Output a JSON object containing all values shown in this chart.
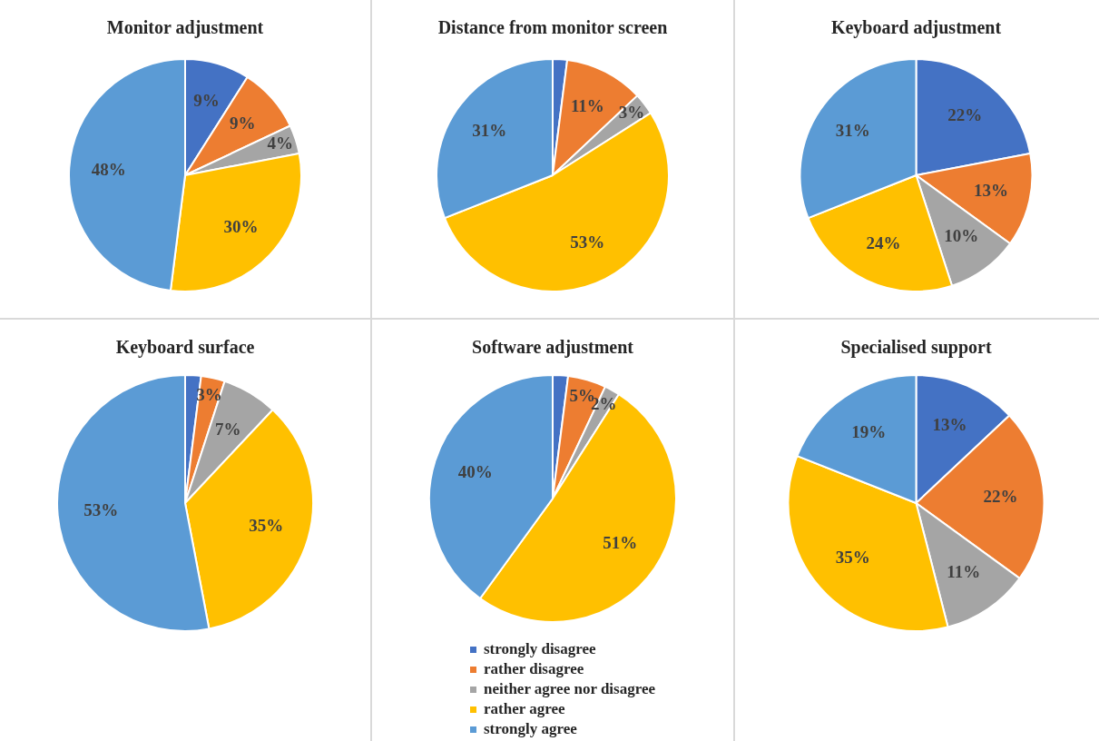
{
  "chart_data": [
    {
      "type": "pie",
      "title": "Monitor adjustment",
      "categories": [
        null,
        null,
        null,
        null,
        null
      ],
      "values": [
        9,
        9,
        4,
        30,
        48
      ],
      "colors": [
        "#4472c4",
        "#ed7d31",
        "#a5a5a5",
        "#ffc000",
        "#5b9bd5"
      ],
      "value_labels": [
        "9%",
        "9%",
        "4%",
        "30%",
        "48%"
      ],
      "legend": false
    },
    {
      "type": "pie",
      "title": "Distance from monitor screen",
      "categories": [
        null,
        null,
        null,
        null,
        null
      ],
      "values": [
        2,
        11,
        3,
        53,
        31
      ],
      "colors": [
        "#4472c4",
        "#ed7d31",
        "#a5a5a5",
        "#ffc000",
        "#5b9bd5"
      ],
      "value_labels": [
        null,
        "11%",
        "3%",
        "53%",
        "31%"
      ],
      "legend": false
    },
    {
      "type": "pie",
      "title": "Keyboard adjustment",
      "categories": [
        null,
        null,
        null,
        null,
        null
      ],
      "values": [
        22,
        13,
        10,
        24,
        31
      ],
      "colors": [
        "#4472c4",
        "#ed7d31",
        "#a5a5a5",
        "#ffc000",
        "#5b9bd5"
      ],
      "value_labels": [
        "22%",
        "13%",
        "10%",
        "24%",
        "31%"
      ],
      "legend": false
    },
    {
      "type": "pie",
      "title": "Keyboard surface",
      "categories": [
        null,
        null,
        null,
        null,
        null
      ],
      "values": [
        2,
        3,
        7,
        35,
        53
      ],
      "colors": [
        "#4472c4",
        "#ed7d31",
        "#a5a5a5",
        "#ffc000",
        "#5b9bd5"
      ],
      "value_labels": [
        null,
        "3%",
        "7%",
        "35%",
        "53%"
      ],
      "legend": false
    },
    {
      "type": "pie",
      "title": "Software adjustment",
      "categories": [
        "strongly disagree",
        "rather disagree",
        "neither agree nor disagree",
        "rather agree",
        "strongly agree"
      ],
      "values": [
        2,
        5,
        2,
        51,
        40
      ],
      "colors": [
        "#4472c4",
        "#ed7d31",
        "#a5a5a5",
        "#ffc000",
        "#5b9bd5"
      ],
      "value_labels": [
        null,
        "5%",
        "2%",
        "51%",
        "40%"
      ],
      "legend": "bottom"
    },
    {
      "type": "pie",
      "title": "Specialised support",
      "categories": [
        null,
        null,
        null,
        null,
        null
      ],
      "values": [
        13,
        22,
        11,
        35,
        19
      ],
      "colors": [
        "#4472c4",
        "#ed7d31",
        "#a5a5a5",
        "#ffc000",
        "#5b9bd5"
      ],
      "value_labels": [
        "13%",
        "22%",
        "11%",
        "35%",
        "19%"
      ],
      "legend": false
    }
  ]
}
